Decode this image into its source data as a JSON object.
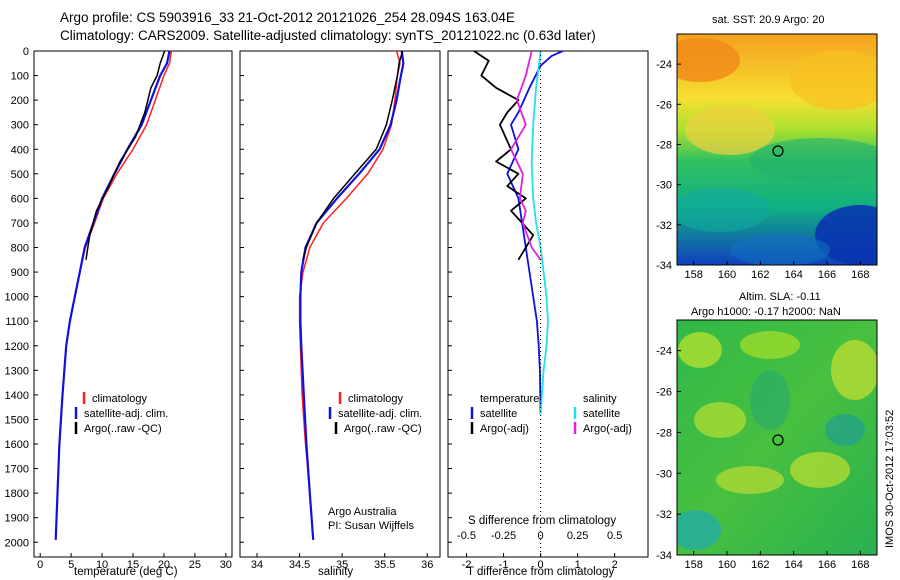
{
  "titles": {
    "line1": "Argo profile: CS 5903916_33 21-Oct-2012 20121026_254 28.094S 163.04E",
    "line2": "Climatology: CARS2009. Satellite-adjusted climatology: synTS_20121022.nc (0.63d later)"
  },
  "colors": {
    "climatology": "#ff2020",
    "satellite": "#1010e0",
    "argo": "#000000",
    "salinity_satellite": "#20e0e8",
    "salinity_argo": "#e020e0"
  },
  "depth_axis": {
    "ticks": [
      "0",
      "100",
      "200",
      "300",
      "400",
      "500",
      "600",
      "700",
      "800",
      "900",
      "1000",
      "1100",
      "1200",
      "1300",
      "1400",
      "1500",
      "1600",
      "1700",
      "1800",
      "1900",
      "2000"
    ],
    "ylim": [
      0,
      2060
    ]
  },
  "panels": {
    "temperature": {
      "xlabel": "temperature (deg C)",
      "ticks": [
        "0",
        "5",
        "10",
        "15",
        "20",
        "25",
        "30"
      ],
      "legend": [
        "climatology",
        "satellite-adj. clim.",
        "Argo(..raw -QC)"
      ]
    },
    "salinity": {
      "xlabel": "salinity",
      "ticks": [
        "34",
        "34.5",
        "35",
        "35.5",
        "36"
      ],
      "legend": [
        "climatology",
        "satellite-adj. clim.",
        "Argo(..raw -QC)"
      ],
      "credit1": "Argo Australia",
      "credit2": "PI: Susan Wijffels"
    },
    "difference": {
      "xlabel": "T difference from climatology",
      "top_label": "S difference from climatology",
      "s_ticks": [
        "-0.5",
        "-0.25",
        "0",
        "0.25",
        "0.5"
      ],
      "t_ticks": [
        "-2",
        "-1",
        "0",
        "1",
        "2"
      ],
      "legend_temp_head": "temperature",
      "legend_sal_head": "salinity",
      "legend_temp": [
        "satellite",
        "Argo(-adj)"
      ],
      "legend_sal": [
        "satellite",
        "Argo(-adj)"
      ]
    }
  },
  "maps": {
    "sst": {
      "title": "sat. SST: 20.9 Argo: 20",
      "y_ticks": [
        "-24",
        "-26",
        "-28",
        "-30",
        "-32",
        "-34"
      ],
      "x_ticks": [
        "158",
        "160",
        "162",
        "164",
        "166",
        "168"
      ]
    },
    "sla": {
      "title1": "Altim. SLA: -0.11",
      "title2": "Argo h1000: -0.17 h2000: NaN",
      "y_ticks": [
        "-24",
        "-26",
        "-28",
        "-30",
        "-32",
        "-34"
      ],
      "x_ticks": [
        "158",
        "160",
        "162",
        "164",
        "166",
        "168"
      ]
    },
    "float_position": {
      "lon": 163.04,
      "lat": -28.094
    }
  },
  "watermark": "IMOS 30-Oct-2012 17:03:52",
  "chart_data": [
    {
      "type": "line",
      "title": "",
      "xlabel": "temperature (deg C)",
      "ylabel": "",
      "xlim": [
        -1,
        31
      ],
      "ylim": [
        0,
        2060
      ],
      "y_reversed": true,
      "series": [
        {
          "name": "climatology",
          "x": [
            21.2,
            20.9,
            20.0,
            18.6,
            17.2,
            15.0,
            12.4,
            10.2,
            8.8,
            7.3,
            6.4,
            5.6,
            4.8,
            4.2,
            3.6,
            3.1,
            2.8,
            2.5
          ],
          "y": [
            0,
            50,
            100,
            200,
            300,
            400,
            500,
            600,
            700,
            800,
            900,
            1000,
            1100,
            1200,
            1400,
            1600,
            1800,
            1990
          ]
        },
        {
          "name": "satellite-adj. clim.",
          "x": [
            20.9,
            20.5,
            19.4,
            17.9,
            16.4,
            14.1,
            12.0,
            10.0,
            8.6,
            7.2,
            6.4,
            5.6,
            4.8,
            4.2,
            3.6,
            3.1,
            2.8,
            2.5
          ],
          "y": [
            0,
            50,
            100,
            200,
            300,
            400,
            500,
            600,
            700,
            800,
            900,
            1000,
            1100,
            1200,
            1400,
            1600,
            1800,
            1990
          ]
        },
        {
          "name": "Argo(..raw -QC)",
          "x": [
            20.1,
            19.4,
            18.9,
            17.9,
            16.9,
            15.4,
            12.9,
            11.1,
            9.1,
            8.0,
            7.4
          ],
          "y": [
            0,
            50,
            100,
            150,
            250,
            350,
            450,
            550,
            650,
            750,
            850
          ]
        }
      ]
    },
    {
      "type": "line",
      "title": "",
      "xlabel": "salinity",
      "ylabel": "",
      "xlim": [
        33.8,
        36.15
      ],
      "ylim": [
        0,
        2060
      ],
      "y_reversed": true,
      "series": [
        {
          "name": "climatology",
          "x": [
            35.64,
            35.68,
            35.65,
            35.62,
            35.58,
            35.48,
            35.3,
            35.05,
            34.78,
            34.62,
            34.54,
            34.5,
            34.5,
            34.51,
            34.53,
            34.57,
            34.62,
            34.66
          ],
          "y": [
            0,
            50,
            100,
            200,
            300,
            400,
            500,
            600,
            700,
            800,
            900,
            1000,
            1100,
            1200,
            1400,
            1600,
            1800,
            1990
          ]
        },
        {
          "name": "satellite-adj. clim.",
          "x": [
            35.7,
            35.72,
            35.69,
            35.64,
            35.57,
            35.44,
            35.2,
            34.94,
            34.7,
            34.57,
            34.52,
            34.51,
            34.51,
            34.52,
            34.55,
            34.58,
            34.62,
            34.66
          ],
          "y": [
            0,
            50,
            100,
            200,
            300,
            400,
            500,
            600,
            700,
            800,
            900,
            1000,
            1100,
            1200,
            1400,
            1600,
            1800,
            1990
          ]
        },
        {
          "name": "Argo(..raw -QC)",
          "x": [
            35.71,
            35.67,
            35.65,
            35.59,
            35.52,
            35.4,
            35.15,
            34.9,
            34.7,
            34.58,
            34.54
          ],
          "y": [
            0,
            50,
            100,
            200,
            300,
            400,
            500,
            600,
            700,
            800,
            850
          ]
        }
      ]
    },
    {
      "type": "line",
      "title": "",
      "xlabel": "T difference from climatology",
      "ylabel": "",
      "xlim": [
        -2.5,
        2.9
      ],
      "ylim": [
        0,
        2060
      ],
      "y_reversed": true,
      "series": [
        {
          "name": "temperature satellite",
          "x": [
            0.6,
            0.3,
            0,
            -0.3,
            -0.6,
            -0.8,
            -0.6,
            -0.9,
            -0.6,
            -0.5,
            -0.4,
            -0.3,
            -0.2,
            -0.1,
            -0.05,
            -0.02,
            0
          ],
          "y": [
            0,
            20,
            60,
            150,
            250,
            300,
            400,
            500,
            600,
            700,
            800,
            900,
            1000,
            1100,
            1200,
            1300,
            1480
          ]
        },
        {
          "name": "temperature Argo(-adj)",
          "x": [
            -1.8,
            -1.4,
            -1.6,
            -1.2,
            -0.6,
            -0.9,
            -1.1,
            -0.8,
            -1.2,
            -0.6,
            -0.9,
            -0.4,
            -0.8,
            -0.5,
            -0.2,
            -0.6
          ],
          "y": [
            0,
            40,
            100,
            150,
            200,
            250,
            300,
            400,
            450,
            500,
            550,
            600,
            650,
            700,
            750,
            850
          ]
        },
        {
          "name": "salinity satellite",
          "x": [
            0,
            -0.01,
            -0.03,
            -0.05,
            -0.06,
            -0.05,
            -0.03,
            0,
            0.02,
            0.04,
            0.05,
            0.04,
            0.02,
            0
          ],
          "y": [
            0,
            50,
            150,
            300,
            450,
            600,
            700,
            800,
            900,
            1000,
            1100,
            1200,
            1300,
            1480
          ]
        },
        {
          "name": "salinity Argo(-adj)",
          "x": [
            -0.06,
            -0.1,
            -0.16,
            -0.1,
            -0.2,
            -0.12,
            -0.14,
            -0.1,
            -0.12,
            -0.06,
            0
          ],
          "y": [
            0,
            100,
            200,
            300,
            400,
            500,
            600,
            650,
            700,
            800,
            850
          ]
        }
      ]
    }
  ]
}
